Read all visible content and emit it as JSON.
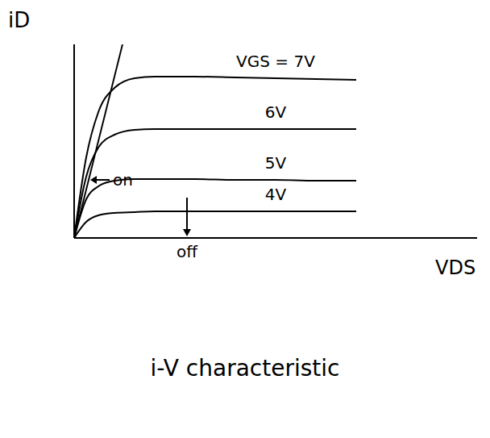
{
  "chart_data": {
    "type": "line",
    "title": "i-V characteristic",
    "x_label": "VDS",
    "y_label": "iD",
    "xlim": [
      0,
      10
    ],
    "ylim": [
      0,
      12
    ],
    "tick_labels": false,
    "grid": false,
    "x": [
      0,
      0.3,
      0.6,
      1,
      1.5,
      2,
      3,
      4,
      5,
      6,
      7
    ],
    "series": [
      {
        "name": "VGS = 7V",
        "color": "#000000",
        "values": [
          0,
          5.0,
          7.8,
          9.3,
          9.9,
          10.0,
          10.0,
          9.95,
          9.9,
          9.85,
          9.8
        ]
      },
      {
        "name": "6V",
        "color": "#000000",
        "values": [
          0,
          3.8,
          5.6,
          6.4,
          6.7,
          6.75,
          6.75,
          6.75,
          6.75,
          6.75,
          6.75
        ]
      },
      {
        "name": "5V",
        "color": "#000000",
        "values": [
          0,
          2.4,
          3.2,
          3.55,
          3.65,
          3.65,
          3.65,
          3.6,
          3.6,
          3.55,
          3.55
        ]
      },
      {
        "name": "4V",
        "color": "#000000",
        "values": [
          0,
          1.0,
          1.4,
          1.55,
          1.6,
          1.65,
          1.65,
          1.65,
          1.65,
          1.65,
          1.65
        ]
      }
    ],
    "on_line": {
      "x": [
        0,
        1.2
      ],
      "y": [
        0,
        12
      ]
    },
    "annotations": [
      {
        "text": "on",
        "x": 0.36,
        "y": 3.6
      },
      {
        "text": "off",
        "x": 2.8,
        "y": 0
      }
    ]
  }
}
